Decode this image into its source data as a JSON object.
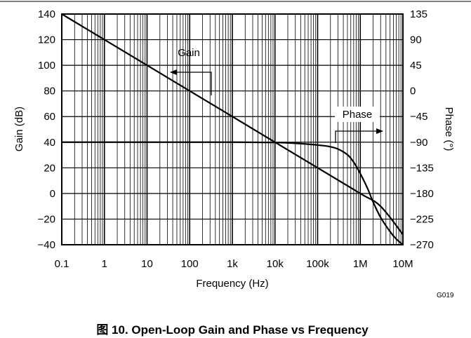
{
  "chart_data": {
    "type": "line",
    "title": "",
    "caption": "图 10. Open-Loop Gain and Phase vs Frequency",
    "figure_code": "G019",
    "x_scale": "log",
    "xlabel": "Frequency (Hz)",
    "xlim": [
      0.1,
      10000000
    ],
    "x_ticks": [
      0.1,
      1,
      10,
      100,
      1000,
      10000,
      100000,
      1000000,
      10000000
    ],
    "x_tick_labels": [
      "0.1",
      "1",
      "10",
      "100",
      "1k",
      "10k",
      "100k",
      "1M",
      "10M"
    ],
    "ylabel": "Gain (dB)",
    "ylim": [
      -40,
      140
    ],
    "y_ticks": [
      -40,
      -20,
      0,
      20,
      40,
      60,
      80,
      100,
      120,
      140
    ],
    "y_tick_labels": [
      "−40",
      "−20",
      "0",
      "20",
      "40",
      "60",
      "80",
      "100",
      "120",
      "140"
    ],
    "y2label": "Phase (°)",
    "y2lim": [
      -270,
      135
    ],
    "y2_ticks": [
      -270,
      -225,
      -180,
      -135,
      -90,
      -45,
      0,
      45,
      90,
      135
    ],
    "y2_tick_labels": [
      "−270",
      "−225",
      "−180",
      "−135",
      "−90",
      "−45",
      "0",
      "45",
      "90",
      "135"
    ],
    "grid": true,
    "legend": "none",
    "line_color": "#000000",
    "series": [
      {
        "name": "Gain",
        "axis": "left",
        "x": [
          0.1,
          1,
          10,
          100,
          1000,
          10000,
          100000,
          1000000,
          3000000,
          10000000
        ],
        "y": [
          140,
          120,
          100,
          80,
          60,
          40,
          20,
          0,
          -10,
          -32
        ]
      },
      {
        "name": "Phase",
        "axis": "right",
        "x": [
          0.1,
          1,
          10,
          100,
          1000,
          10000,
          30000,
          100000,
          200000,
          300000,
          500000,
          700000,
          1000000,
          1500000,
          2000000,
          3000000,
          5000000,
          7000000,
          10000000
        ],
        "y": [
          -90,
          -90,
          -90,
          -90,
          -90,
          -90.5,
          -92,
          -95,
          -98,
          -102,
          -112,
          -125,
          -145,
          -172,
          -195,
          -222,
          -247,
          -260,
          -270
        ]
      }
    ],
    "annotations": [
      {
        "text": "Gain",
        "target_series": "Gain",
        "arrow_direction": "left"
      },
      {
        "text": "Phase",
        "target_series": "Phase",
        "arrow_direction": "right"
      }
    ]
  }
}
